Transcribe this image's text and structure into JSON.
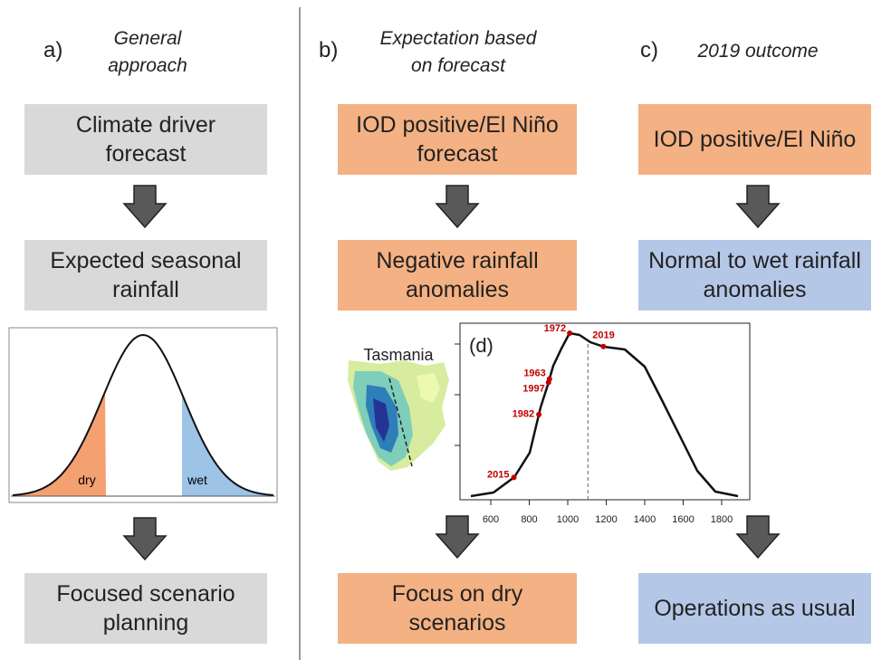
{
  "panels": [
    {
      "label": "a)",
      "title": [
        "General",
        "approach"
      ],
      "boxes": [
        [
          "Climate driver",
          "forecast"
        ],
        [
          "Expected seasonal",
          "rainfall"
        ],
        [
          "Focused scenario",
          "planning"
        ]
      ],
      "box_colors": [
        "#d9d9d9",
        "#d9d9d9",
        "#d9d9d9"
      ]
    },
    {
      "label": "b)",
      "title": [
        "Expectation based",
        "on forecast"
      ],
      "boxes": [
        [
          "IOD positive/El Niño",
          "forecast"
        ],
        [
          "Negative rainfall",
          "anomalies"
        ],
        [
          "Focus on dry",
          "scenarios"
        ]
      ],
      "box_colors": [
        "#f4b183",
        "#f4b183",
        "#f4b183"
      ]
    },
    {
      "label": "c)",
      "title": [
        "2019 outcome"
      ],
      "boxes": [
        [
          "IOD positive/El Niño"
        ],
        [
          "Normal to wet rainfall",
          "anomalies"
        ],
        [
          "Operations as usual"
        ]
      ],
      "box_colors": [
        "#f4b183",
        "#b4c7e7",
        "#b4c7e7"
      ]
    }
  ],
  "distribution": {
    "dry_label": "dry",
    "wet_label": "wet",
    "dry_color": "#f4a070",
    "wet_color": "#9dc3e6"
  },
  "map": {
    "label": "Tasmania"
  },
  "density_chart": {
    "type": "line",
    "label": "(d)",
    "xlim": [
      440,
      1946
    ],
    "xticks": [
      600,
      800,
      1000,
      1200,
      1400,
      1600,
      1800
    ],
    "reference_x": 1105,
    "point_color": "#c00000",
    "points": [
      {
        "label": "1972",
        "x": 1010
      },
      {
        "label": "2019",
        "x": 1185
      },
      {
        "label": "1963",
        "x": 905
      },
      {
        "label": "1997",
        "x": 900
      },
      {
        "label": "1982",
        "x": 850
      },
      {
        "label": "2015",
        "x": 720
      }
    ]
  }
}
